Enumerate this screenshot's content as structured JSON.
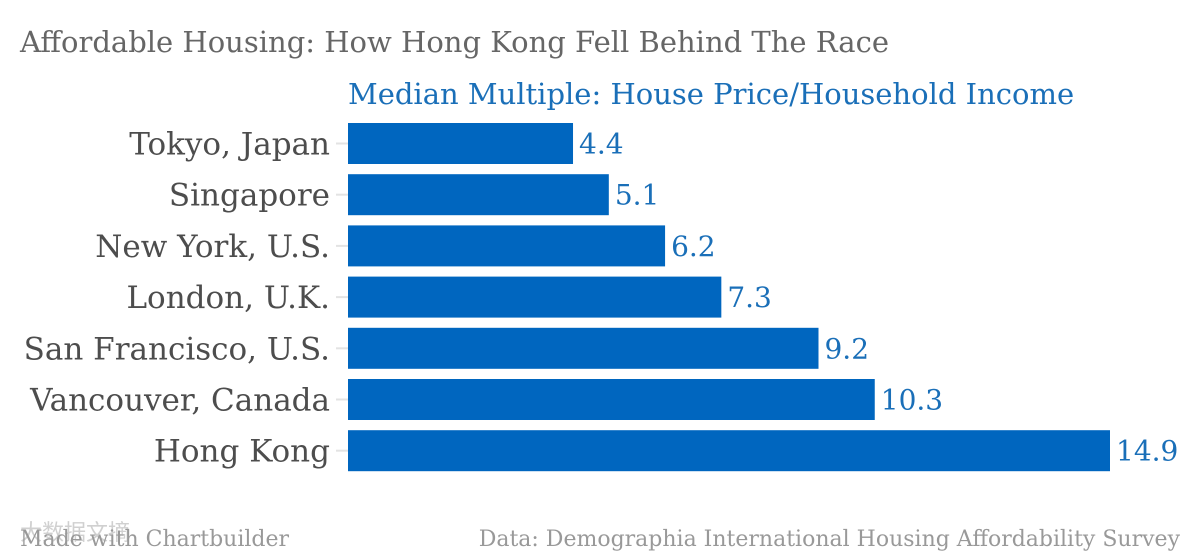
{
  "chart_data": {
    "type": "bar",
    "orientation": "horizontal",
    "title": "Affordable Housing: How Hong Kong Fell Behind The Race",
    "subtitle": "Median Multiple: House Price/Household Income",
    "categories": [
      "Tokyo, Japan",
      "Singapore",
      "New York, U.S.",
      "London, U.K.",
      "San Francisco, U.S.",
      "Vancouver, Canada",
      "Hong Kong"
    ],
    "values": [
      4.4,
      5.1,
      6.2,
      7.3,
      9.2,
      10.3,
      14.9
    ],
    "value_labels": [
      "4.4",
      "5.1",
      "6.2",
      "7.3",
      "9.2",
      "10.3",
      "14.9"
    ],
    "xlim": [
      0,
      14.9
    ],
    "xlabel": "",
    "ylabel": "",
    "grid": false,
    "bar_color": "#0066bf",
    "label_color": "#1a6fb8"
  },
  "footer": {
    "left": "Made with Chartbuilder",
    "right": "Data: Demographia International Housing Affordability Survey"
  },
  "watermark": {
    "text": "大数据文摘"
  }
}
